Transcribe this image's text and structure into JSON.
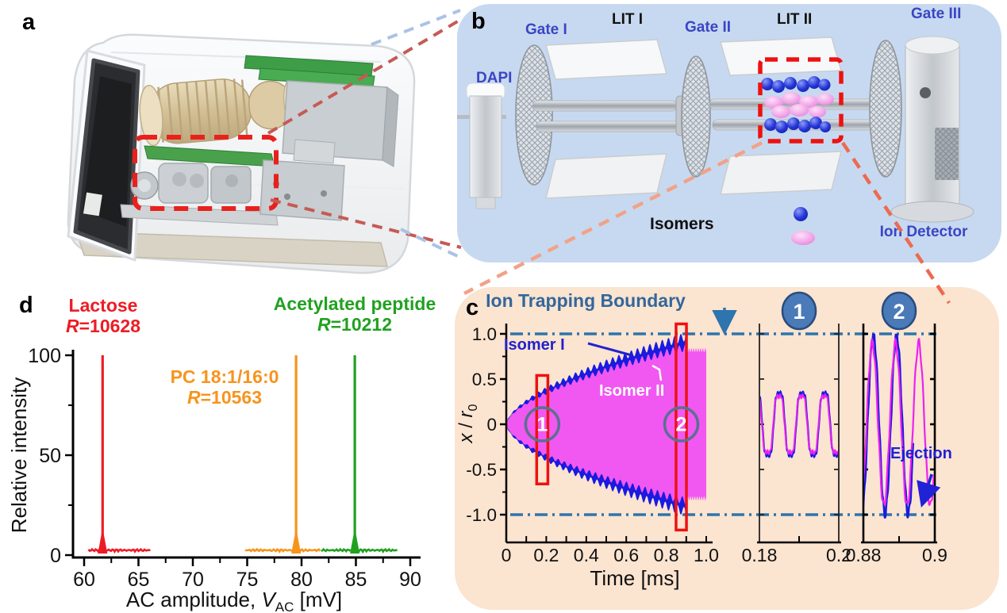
{
  "figure_labels": {
    "a": "a",
    "b": "b",
    "c": "c",
    "d": "d"
  },
  "panel_b": {
    "labels": {
      "dapi": "DAPI",
      "gate1": "Gate I",
      "lit1": "LIT I",
      "gate2": "Gate II",
      "lit2": "LIT II",
      "gate3": "Gate III",
      "isomers": "Isomers",
      "detector": "Ion Detector"
    },
    "colors": {
      "bg": "#c7d9f0",
      "blue_label": "#3a45c4",
      "ion_blue": "#2335d6",
      "ion_pink": "#f0a0e8",
      "highlight_red": "#ee1111"
    }
  },
  "panel_c": {
    "title": "Ion Trapping Boundary",
    "labels": {
      "isomer1": "Isomer I",
      "isomer2": "Isomer II",
      "ejection": "Ejection",
      "xlabel": "Time [ms]",
      "ylabel_x": "x",
      "ylabel_slash": " / ",
      "ylabel_r": "r",
      "ylabel_sub": "0"
    },
    "colors": {
      "bg": "#fbe4d0",
      "boundary": "#2e74ad",
      "title": "#33679b",
      "isomer1_blue": "#1a1ae0",
      "isomer2_magenta": "#f158f1",
      "marker_red": "#ee1111",
      "badge_fill": "#4a7ab8",
      "badge_stroke": "#284d7e"
    }
  },
  "panel_d": {
    "ylabel": "Relative intensity",
    "xlabel_parts": {
      "pre": "AC amplitude, ",
      "sym": "V",
      "sub": "AC",
      "post": " [mV]"
    }
  },
  "chart_data": [
    {
      "id": "ion-motion-main",
      "type": "area",
      "panel": "c",
      "title": "Ion Trapping Boundary",
      "xlabel": "Time [ms]",
      "ylabel": "x / r0",
      "xlim": [
        0,
        1.0
      ],
      "ylim": [
        -1.25,
        1.25
      ],
      "xticks": [
        [
          0,
          "0"
        ],
        [
          0.2,
          "0.2"
        ],
        [
          0.4,
          "0.4"
        ],
        [
          0.6,
          "0.6"
        ],
        [
          0.8,
          "0.8"
        ],
        [
          1.0,
          "1.0"
        ]
      ],
      "yticks": [
        [
          1.0,
          "1.0"
        ],
        [
          0.5,
          "0.5"
        ],
        [
          0,
          "0"
        ],
        [
          -0.5,
          "-0.5"
        ],
        [
          -1.0,
          "-1.0"
        ]
      ],
      "minor_xtick_step": 0.1,
      "minor_ytick_step": 0.25,
      "boundary_lines_y": [
        1.0,
        -1.0
      ],
      "grid": false,
      "series": [
        {
          "name": "Isomer I",
          "color": "#1a1ae0",
          "t_start": 0,
          "t_end": 0.9,
          "max_amplitude": 0.97,
          "growth_exponent": 0.6,
          "ripple_period_ms": 0.031,
          "ripple_fraction": 0.05
        },
        {
          "name": "Isomer II",
          "color": "#f158f1",
          "t_start": 0,
          "t_end": 1.0,
          "max_amplitude": 0.85,
          "growth_exponent": 0.6,
          "saturation_amplitude": 0.82,
          "saturation_from_t": 0.9,
          "ripple_period_ms": 0.031,
          "ripple_fraction": 0.05
        }
      ],
      "highlight_windows": [
        {
          "label": "1",
          "t_center": 0.18,
          "t_halfwidth": 0.028,
          "y_top": 0.54,
          "y_bottom": -0.66
        },
        {
          "label": "2",
          "t_center": 0.875,
          "t_halfwidth": 0.026,
          "y_top": 1.11,
          "y_bottom": -1.17
        }
      ]
    },
    {
      "id": "ion-motion-inset1",
      "type": "line",
      "panel": "c",
      "badge": "1",
      "xlim": [
        0.18,
        0.2
      ],
      "xticks": [
        [
          0.18,
          "0.18"
        ],
        [
          0.2,
          "0.2"
        ]
      ],
      "period_ms": 0.00571,
      "amplitude": 0.37,
      "series": [
        "Isomer I",
        "Isomer II"
      ]
    },
    {
      "id": "ion-motion-inset2",
      "type": "line",
      "panel": "c",
      "badge": "2",
      "xlim": [
        0.88,
        0.9
      ],
      "xticks": [
        [
          0.88,
          "0.88"
        ],
        [
          0.9,
          "0.9"
        ]
      ],
      "period_ms": 0.0065,
      "amplitude": 0.95,
      "annotation": "Ejection",
      "series": [
        "Isomer I",
        "Isomer II"
      ]
    },
    {
      "id": "resolution-scan",
      "type": "line",
      "panel": "d",
      "xlabel": "AC amplitude, V_AC [mV]",
      "ylabel": "Relative intensity",
      "xlim": [
        60,
        90
      ],
      "ylim": [
        0,
        100
      ],
      "xticks": [
        [
          60,
          "60"
        ],
        [
          65,
          "65"
        ],
        [
          70,
          "70"
        ],
        [
          75,
          "75"
        ],
        [
          80,
          "80"
        ],
        [
          85,
          "85"
        ],
        [
          90,
          "90"
        ]
      ],
      "yticks": [
        [
          0,
          "0"
        ],
        [
          50,
          "50"
        ],
        [
          100,
          "100"
        ]
      ],
      "minor_xtick_step": 2.5,
      "minor_ytick_step": 25,
      "grid": false,
      "series": [
        {
          "name": "Lactose",
          "r_label": "R=10628",
          "color": "#ed1c24",
          "peak_x": 61.7,
          "peak_y": 100,
          "baseline_x": [
            60.4,
            66.1
          ]
        },
        {
          "name": "PC 18:1/16:0",
          "r_label": "R=10563",
          "color": "#f7941d",
          "peak_x": 79.5,
          "peak_y": 100,
          "baseline_x": [
            74.8,
            81.8
          ]
        },
        {
          "name": "Acetylated peptide",
          "r_label": "R=10212",
          "color": "#21a121",
          "peak_x": 84.9,
          "peak_y": 100,
          "baseline_x": [
            81.8,
            88.9
          ]
        }
      ]
    }
  ]
}
